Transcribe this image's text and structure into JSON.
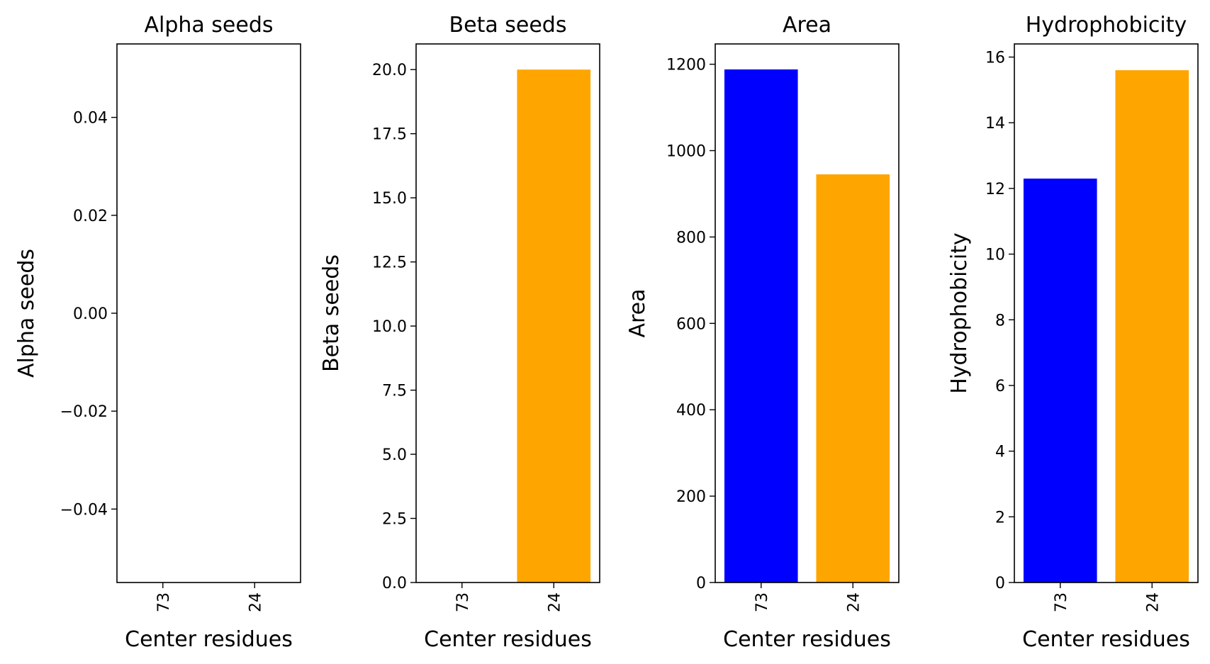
{
  "chart_data": [
    {
      "type": "bar",
      "title": "Alpha seeds",
      "xlabel": "Center residues",
      "ylabel": "Alpha seeds",
      "categories": [
        "73",
        "24"
      ],
      "values": [
        0,
        0
      ],
      "colors": [
        "#0000ff",
        "#ffa500"
      ],
      "ylim": [
        -0.055,
        0.055
      ],
      "yticks": [
        -0.04,
        -0.02,
        0.0,
        0.02,
        0.04
      ],
      "ytick_labels": [
        "−0.04",
        "−0.02",
        "0.00",
        "0.02",
        "0.04"
      ],
      "grid": false
    },
    {
      "type": "bar",
      "title": "Beta seeds",
      "xlabel": "Center residues",
      "ylabel": "Beta seeds",
      "categories": [
        "73",
        "24"
      ],
      "values": [
        0,
        20
      ],
      "colors": [
        "#0000ff",
        "#ffa500"
      ],
      "ylim": [
        0,
        21
      ],
      "yticks": [
        0,
        2.5,
        5,
        7.5,
        10,
        12.5,
        15,
        17.5,
        20
      ],
      "ytick_labels": [
        "0.0",
        "2.5",
        "5.0",
        "7.5",
        "10.0",
        "12.5",
        "15.0",
        "17.5",
        "20.0"
      ],
      "grid": false
    },
    {
      "type": "bar",
      "title": "Area",
      "xlabel": "Center residues",
      "ylabel": "Area",
      "categories": [
        "73",
        "24"
      ],
      "values": [
        1188,
        945
      ],
      "colors": [
        "#0000ff",
        "#ffa500"
      ],
      "ylim": [
        0,
        1247
      ],
      "yticks": [
        0,
        200,
        400,
        600,
        800,
        1000,
        1200
      ],
      "ytick_labels": [
        "0",
        "200",
        "400",
        "600",
        "800",
        "1000",
        "1200"
      ],
      "grid": false
    },
    {
      "type": "bar",
      "title": "Hydrophobicity",
      "xlabel": "Center residues",
      "ylabel": "Hydrophobicity",
      "categories": [
        "73",
        "24"
      ],
      "values": [
        12.3,
        15.6
      ],
      "colors": [
        "#0000ff",
        "#ffa500"
      ],
      "ylim": [
        0,
        16.4
      ],
      "yticks": [
        0,
        2,
        4,
        6,
        8,
        10,
        12,
        14,
        16
      ],
      "ytick_labels": [
        "0",
        "2",
        "4",
        "6",
        "8",
        "10",
        "12",
        "14",
        "16"
      ],
      "grid": false
    }
  ]
}
